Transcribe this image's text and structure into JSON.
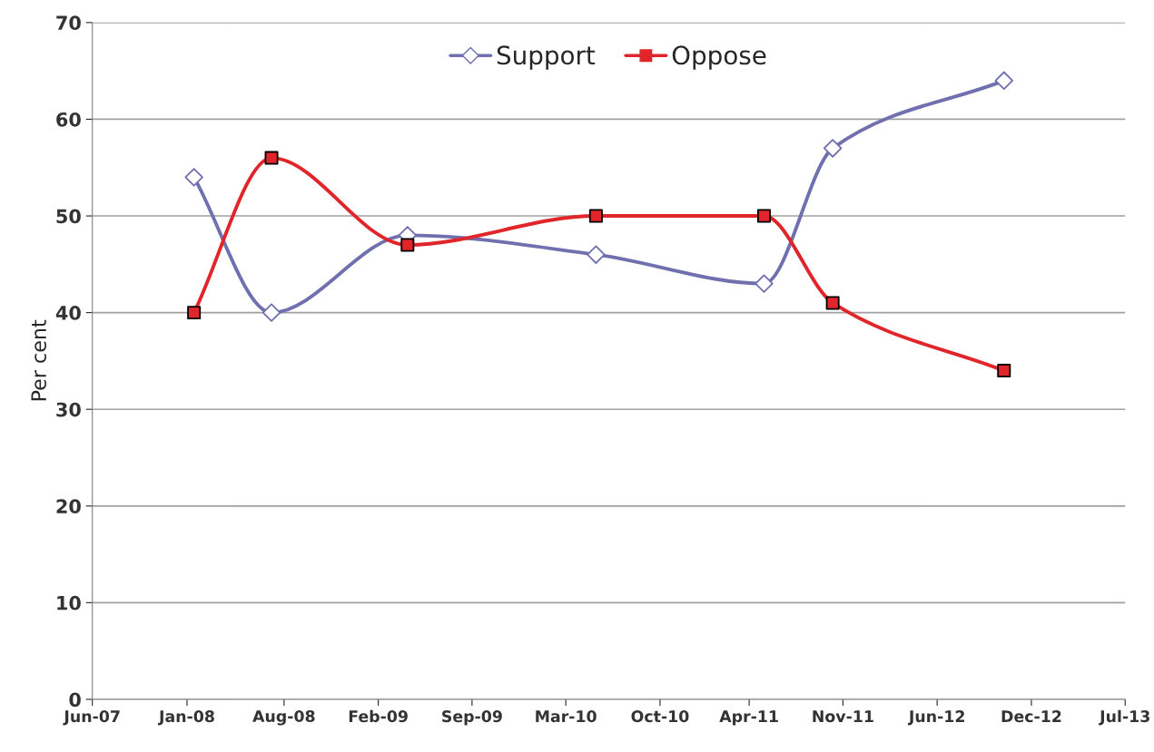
{
  "chart_data": {
    "type": "line",
    "ylabel": "Per cent",
    "x": [
      "2008-01-20",
      "2008-07-05",
      "2009-04-24",
      "2010-06-04",
      "2011-06-01",
      "2011-10-27",
      "2012-10-30"
    ],
    "series": [
      {
        "name": "Support",
        "color": "#7070b0",
        "marker": "diamond",
        "values": [
          54,
          40,
          48,
          46,
          43,
          57,
          64
        ]
      },
      {
        "name": "Oppose",
        "color": "#e0262b",
        "marker": "square",
        "values": [
          40,
          56,
          47,
          50,
          50,
          41,
          34
        ]
      }
    ],
    "xlim": [
      "2007-06-15",
      "2013-07-18"
    ],
    "xticks": [
      {
        "value": "2007-06-15",
        "label": "Jun-07"
      },
      {
        "value": "2008-01-05",
        "label": "Jan-08"
      },
      {
        "value": "2008-08-01",
        "label": "Aug-08"
      },
      {
        "value": "2009-02-20",
        "label": "Feb-09"
      },
      {
        "value": "2009-09-10",
        "label": "Sep-09"
      },
      {
        "value": "2010-03-31",
        "label": "Mar-10"
      },
      {
        "value": "2010-10-20",
        "label": "Oct-10"
      },
      {
        "value": "2011-04-30",
        "label": "Apr-11"
      },
      {
        "value": "2011-11-18",
        "label": "Nov-11"
      },
      {
        "value": "2012-06-08",
        "label": "Jun-12"
      },
      {
        "value": "2012-12-28",
        "label": "Dec-12"
      },
      {
        "value": "2013-07-18",
        "label": "Jul-13"
      }
    ],
    "ylim": [
      0,
      70
    ],
    "yticks": [
      0,
      10,
      20,
      30,
      40,
      50,
      60,
      70
    ],
    "grid": "y",
    "legend": "top",
    "line_style": "solid"
  }
}
